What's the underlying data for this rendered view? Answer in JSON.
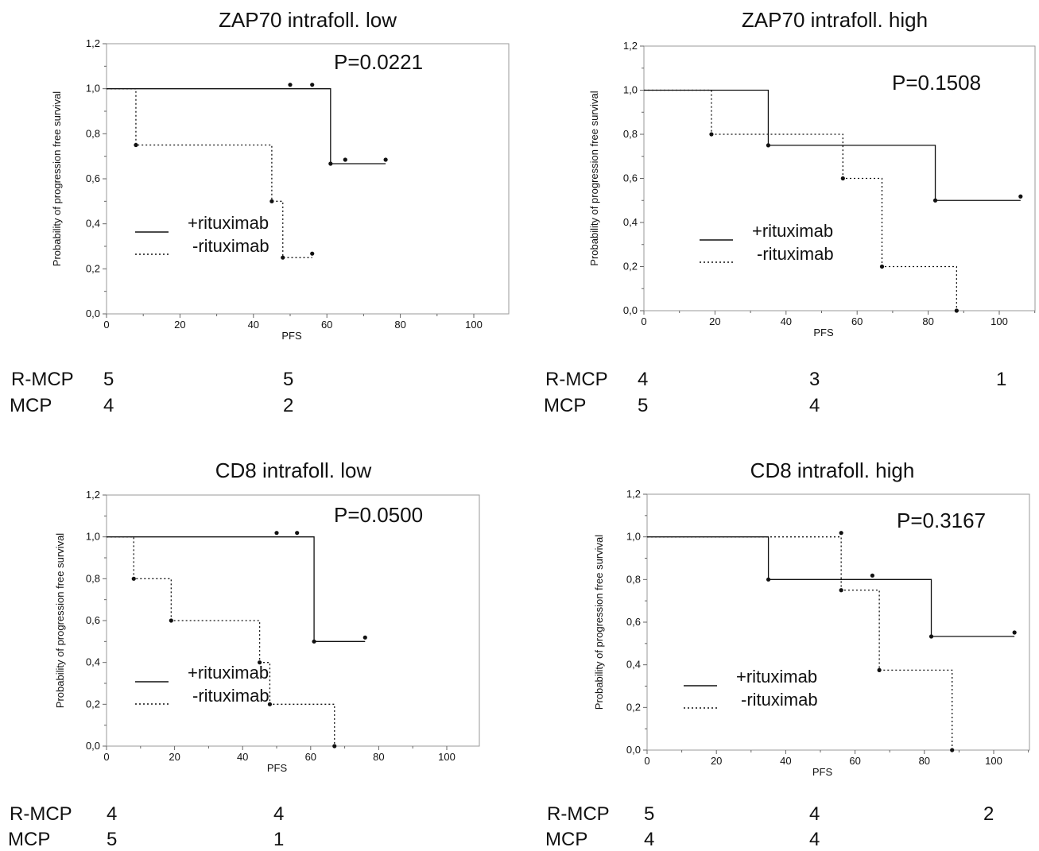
{
  "common": {
    "ylabel": "Probability of progression free survival",
    "xlabel": "PFS",
    "legend": {
      "solid": "+rituximab",
      "dotted": "-rituximab"
    },
    "yticks": [
      "0,0",
      "0,2",
      "0,4",
      "0,6",
      "0,8",
      "1,0",
      "1,2"
    ],
    "xticks": [
      "0",
      "20",
      "40",
      "60",
      "80",
      "100"
    ]
  },
  "chart_data": [
    {
      "type": "line",
      "title": "ZAP70 intrafoll. low",
      "p_value": "P=0.0221",
      "xlabel": "PFS",
      "ylabel": "Probability of progression free survival",
      "xlim": [
        0,
        110
      ],
      "ylim": [
        0,
        1.2
      ],
      "legend_position": "left-middle",
      "series": [
        {
          "name": "+rituximab",
          "style": "solid",
          "steps": [
            [
              0,
              1.0
            ],
            [
              61,
              0.667
            ]
          ],
          "end": 76,
          "censored": [
            [
              50,
              1.0
            ],
            [
              56,
              1.0
            ],
            [
              65,
              0.667
            ],
            [
              76,
              0.667
            ]
          ]
        },
        {
          "name": "-rituximab",
          "style": "dotted",
          "steps": [
            [
              0,
              1.0
            ],
            [
              8,
              0.75
            ],
            [
              45,
              0.5
            ],
            [
              48,
              0.25
            ]
          ],
          "end": 56,
          "censored": [
            [
              56,
              0.25
            ]
          ]
        }
      ],
      "risk_table": [
        {
          "label": "R-MCP",
          "values": [
            "5",
            "5"
          ]
        },
        {
          "label": "MCP",
          "values": [
            "4",
            "2"
          ]
        }
      ]
    },
    {
      "type": "line",
      "title": "ZAP70 intrafoll. high",
      "p_value": "P=0.1508",
      "xlabel": "PFS",
      "ylabel": "Probability of progression free survival",
      "xlim": [
        0,
        110
      ],
      "ylim": [
        0,
        1.2
      ],
      "legend_position": "left-middle",
      "series": [
        {
          "name": "+rituximab",
          "style": "solid",
          "steps": [
            [
              0,
              1.0
            ],
            [
              35,
              0.75
            ],
            [
              82,
              0.5
            ]
          ],
          "end": 106,
          "censored": [
            [
              106,
              0.5
            ]
          ]
        },
        {
          "name": "-rituximab",
          "style": "dotted",
          "steps": [
            [
              0,
              1.0
            ],
            [
              19,
              0.8
            ],
            [
              56,
              0.6
            ],
            [
              67,
              0.2
            ],
            [
              88,
              0.0
            ]
          ],
          "end": 88,
          "censored": []
        }
      ],
      "risk_table": [
        {
          "label": "R-MCP",
          "values": [
            "4",
            "3",
            "1"
          ]
        },
        {
          "label": "MCP",
          "values": [
            "5",
            "4"
          ]
        }
      ]
    },
    {
      "type": "line",
      "title": "CD8 intrafoll. low",
      "p_value": "P=0.0500",
      "xlabel": "PFS",
      "ylabel": "Probability of progression free survival",
      "xlim": [
        0,
        110
      ],
      "ylim": [
        0,
        1.2
      ],
      "legend_position": "left-middle",
      "series": [
        {
          "name": "+rituximab",
          "style": "solid",
          "steps": [
            [
              0,
              1.0
            ],
            [
              61,
              0.5
            ]
          ],
          "end": 76,
          "censored": [
            [
              50,
              1.0
            ],
            [
              56,
              1.0
            ],
            [
              76,
              0.5
            ]
          ]
        },
        {
          "name": "-rituximab",
          "style": "dotted",
          "steps": [
            [
              0,
              1.0
            ],
            [
              8,
              0.8
            ],
            [
              19,
              0.6
            ],
            [
              45,
              0.4
            ],
            [
              48,
              0.2
            ],
            [
              67,
              0.0
            ]
          ],
          "end": 67,
          "censored": []
        }
      ],
      "risk_table": [
        {
          "label": "R-MCP",
          "values": [
            "4",
            "4"
          ]
        },
        {
          "label": "MCP",
          "values": [
            "5",
            "1"
          ]
        }
      ]
    },
    {
      "type": "line",
      "title": "CD8 intrafoll. high",
      "p_value": "P=0.3167",
      "xlabel": "PFS",
      "ylabel": "Probability of progression free survival",
      "xlim": [
        0,
        110
      ],
      "ylim": [
        0,
        1.2
      ],
      "legend_position": "left-middle",
      "series": [
        {
          "name": "+rituximab",
          "style": "solid",
          "steps": [
            [
              0,
              1.0
            ],
            [
              35,
              0.8
            ],
            [
              82,
              0.533
            ]
          ],
          "end": 106,
          "censored": [
            [
              65,
              0.8
            ],
            [
              106,
              0.533
            ]
          ]
        },
        {
          "name": "-rituximab",
          "style": "dotted",
          "steps": [
            [
              0,
              1.0
            ],
            [
              56,
              0.75
            ],
            [
              67,
              0.375
            ],
            [
              88,
              0.0
            ]
          ],
          "end": 88,
          "censored": [
            [
              56,
              1.0
            ]
          ]
        }
      ],
      "risk_table": [
        {
          "label": "R-MCP",
          "values": [
            "5",
            "4",
            "2"
          ]
        },
        {
          "label": "MCP",
          "values": [
            "4",
            "4"
          ]
        }
      ]
    }
  ]
}
